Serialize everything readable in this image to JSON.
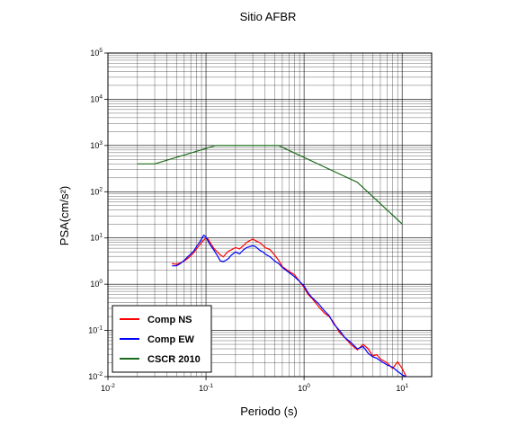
{
  "chart_data": {
    "type": "line",
    "title": "Sitio AFBR",
    "xlabel": "Periodo (s)",
    "ylabel": "PSA(cm/s²)",
    "xscale": "log",
    "yscale": "log",
    "xlim": [
      0.01,
      20
    ],
    "ylim": [
      0.01,
      100000
    ],
    "grid": true,
    "legend_position": "bottom-left",
    "x_tick_labels": [
      {
        "value": 0.01,
        "base": "10",
        "exp": "-2"
      },
      {
        "value": 0.1,
        "base": "10",
        "exp": "-1"
      },
      {
        "value": 1,
        "base": "10",
        "exp": "0"
      },
      {
        "value": 10,
        "base": "10",
        "exp": "1"
      }
    ],
    "y_tick_labels": [
      {
        "value": 0.01,
        "base": "10",
        "exp": "-2"
      },
      {
        "value": 0.1,
        "base": "10",
        "exp": "-1"
      },
      {
        "value": 1,
        "base": "10",
        "exp": "0"
      },
      {
        "value": 10,
        "base": "10",
        "exp": "1"
      },
      {
        "value": 100,
        "base": "10",
        "exp": "2"
      },
      {
        "value": 1000,
        "base": "10",
        "exp": "3"
      },
      {
        "value": 10000,
        "base": "10",
        "exp": "4"
      },
      {
        "value": 100000,
        "base": "10",
        "exp": "5"
      }
    ],
    "series": [
      {
        "name": "Comp NS",
        "color": "#ff0000",
        "x": [
          0.045,
          0.05,
          0.055,
          0.06,
          0.065,
          0.07,
          0.075,
          0.08,
          0.085,
          0.09,
          0.095,
          0.1,
          0.105,
          0.11,
          0.12,
          0.13,
          0.14,
          0.15,
          0.16,
          0.17,
          0.18,
          0.2,
          0.22,
          0.24,
          0.26,
          0.28,
          0.3,
          0.32,
          0.35,
          0.38,
          0.4,
          0.45,
          0.5,
          0.55,
          0.6,
          0.7,
          0.8,
          0.9,
          1.0,
          1.1,
          1.2,
          1.4,
          1.6,
          1.8,
          2.0,
          2.3,
          2.6,
          3.0,
          3.5,
          4.0,
          4.5,
          5.0,
          5.5,
          6.0,
          7.0,
          8.0,
          9.0,
          10.0,
          11.0
        ],
        "y": [
          2.8,
          2.7,
          2.9,
          3.2,
          3.6,
          4.1,
          4.8,
          5.8,
          6.8,
          8.0,
          9.0,
          10.0,
          9.5,
          8.0,
          6.0,
          5.0,
          4.3,
          3.9,
          4.6,
          5.2,
          5.5,
          6.2,
          5.8,
          6.8,
          8.0,
          8.8,
          9.5,
          8.7,
          8.0,
          7.0,
          6.2,
          5.6,
          4.3,
          3.3,
          2.4,
          1.9,
          1.6,
          1.15,
          0.85,
          0.6,
          0.5,
          0.33,
          0.24,
          0.2,
          0.15,
          0.09,
          0.07,
          0.05,
          0.038,
          0.05,
          0.04,
          0.028,
          0.03,
          0.024,
          0.02,
          0.015,
          0.021,
          0.015,
          0.01
        ]
      },
      {
        "name": "Comp EW",
        "color": "#0000ff",
        "x": [
          0.045,
          0.05,
          0.055,
          0.06,
          0.065,
          0.07,
          0.075,
          0.08,
          0.085,
          0.09,
          0.095,
          0.1,
          0.105,
          0.11,
          0.12,
          0.13,
          0.14,
          0.15,
          0.16,
          0.17,
          0.18,
          0.2,
          0.22,
          0.24,
          0.26,
          0.28,
          0.3,
          0.32,
          0.35,
          0.38,
          0.4,
          0.45,
          0.5,
          0.55,
          0.6,
          0.7,
          0.8,
          0.9,
          1.0,
          1.1,
          1.2,
          1.4,
          1.6,
          1.8,
          2.0,
          2.3,
          2.6,
          3.0,
          3.5,
          4.0,
          4.5,
          5.0,
          5.5,
          6.0,
          7.0,
          8.0,
          9.0,
          10.0,
          11.0
        ],
        "y": [
          2.5,
          2.5,
          2.8,
          3.3,
          3.9,
          4.5,
          5.2,
          6.5,
          7.8,
          9.5,
          11.5,
          10.5,
          8.5,
          7.2,
          5.5,
          4.2,
          3.2,
          3.1,
          3.3,
          3.6,
          4.2,
          5.0,
          4.5,
          5.5,
          6.2,
          6.5,
          6.8,
          6.5,
          5.5,
          5.0,
          4.5,
          3.9,
          3.2,
          2.8,
          2.3,
          1.8,
          1.45,
          1.15,
          0.92,
          0.65,
          0.52,
          0.38,
          0.27,
          0.21,
          0.14,
          0.1,
          0.07,
          0.055,
          0.04,
          0.045,
          0.032,
          0.027,
          0.025,
          0.022,
          0.018,
          0.016,
          0.013,
          0.011,
          0.01
        ]
      },
      {
        "name": "CSCR 2010",
        "color": "#1a6b1a",
        "x": [
          0.02,
          0.03,
          0.125,
          0.55,
          3.5,
          10.0
        ],
        "y": [
          400,
          400,
          1000,
          1000,
          160,
          20
        ]
      }
    ]
  }
}
